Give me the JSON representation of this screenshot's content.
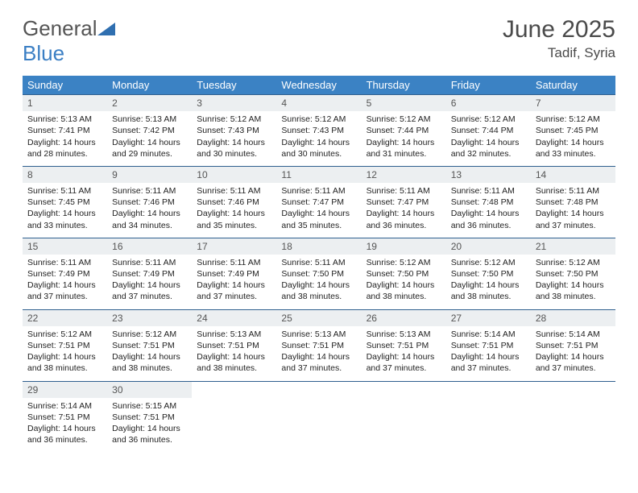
{
  "brand": {
    "name1": "General",
    "name2": "Blue"
  },
  "header": {
    "title": "June 2025",
    "location": "Tadif, Syria"
  },
  "colors": {
    "header_bg": "#3b82c4",
    "header_fg": "#ffffff",
    "daynum_bg": "#eceff1",
    "row_border": "#2f5f8f",
    "text": "#222222",
    "brand_gray": "#555555",
    "brand_blue": "#3b7fc4"
  },
  "day_headers": [
    "Sunday",
    "Monday",
    "Tuesday",
    "Wednesday",
    "Thursday",
    "Friday",
    "Saturday"
  ],
  "weeks": [
    [
      {
        "num": "1",
        "sunrise": "Sunrise: 5:13 AM",
        "sunset": "Sunset: 7:41 PM",
        "daylight": "Daylight: 14 hours and 28 minutes."
      },
      {
        "num": "2",
        "sunrise": "Sunrise: 5:13 AM",
        "sunset": "Sunset: 7:42 PM",
        "daylight": "Daylight: 14 hours and 29 minutes."
      },
      {
        "num": "3",
        "sunrise": "Sunrise: 5:12 AM",
        "sunset": "Sunset: 7:43 PM",
        "daylight": "Daylight: 14 hours and 30 minutes."
      },
      {
        "num": "4",
        "sunrise": "Sunrise: 5:12 AM",
        "sunset": "Sunset: 7:43 PM",
        "daylight": "Daylight: 14 hours and 30 minutes."
      },
      {
        "num": "5",
        "sunrise": "Sunrise: 5:12 AM",
        "sunset": "Sunset: 7:44 PM",
        "daylight": "Daylight: 14 hours and 31 minutes."
      },
      {
        "num": "6",
        "sunrise": "Sunrise: 5:12 AM",
        "sunset": "Sunset: 7:44 PM",
        "daylight": "Daylight: 14 hours and 32 minutes."
      },
      {
        "num": "7",
        "sunrise": "Sunrise: 5:12 AM",
        "sunset": "Sunset: 7:45 PM",
        "daylight": "Daylight: 14 hours and 33 minutes."
      }
    ],
    [
      {
        "num": "8",
        "sunrise": "Sunrise: 5:11 AM",
        "sunset": "Sunset: 7:45 PM",
        "daylight": "Daylight: 14 hours and 33 minutes."
      },
      {
        "num": "9",
        "sunrise": "Sunrise: 5:11 AM",
        "sunset": "Sunset: 7:46 PM",
        "daylight": "Daylight: 14 hours and 34 minutes."
      },
      {
        "num": "10",
        "sunrise": "Sunrise: 5:11 AM",
        "sunset": "Sunset: 7:46 PM",
        "daylight": "Daylight: 14 hours and 35 minutes."
      },
      {
        "num": "11",
        "sunrise": "Sunrise: 5:11 AM",
        "sunset": "Sunset: 7:47 PM",
        "daylight": "Daylight: 14 hours and 35 minutes."
      },
      {
        "num": "12",
        "sunrise": "Sunrise: 5:11 AM",
        "sunset": "Sunset: 7:47 PM",
        "daylight": "Daylight: 14 hours and 36 minutes."
      },
      {
        "num": "13",
        "sunrise": "Sunrise: 5:11 AM",
        "sunset": "Sunset: 7:48 PM",
        "daylight": "Daylight: 14 hours and 36 minutes."
      },
      {
        "num": "14",
        "sunrise": "Sunrise: 5:11 AM",
        "sunset": "Sunset: 7:48 PM",
        "daylight": "Daylight: 14 hours and 37 minutes."
      }
    ],
    [
      {
        "num": "15",
        "sunrise": "Sunrise: 5:11 AM",
        "sunset": "Sunset: 7:49 PM",
        "daylight": "Daylight: 14 hours and 37 minutes."
      },
      {
        "num": "16",
        "sunrise": "Sunrise: 5:11 AM",
        "sunset": "Sunset: 7:49 PM",
        "daylight": "Daylight: 14 hours and 37 minutes."
      },
      {
        "num": "17",
        "sunrise": "Sunrise: 5:11 AM",
        "sunset": "Sunset: 7:49 PM",
        "daylight": "Daylight: 14 hours and 37 minutes."
      },
      {
        "num": "18",
        "sunrise": "Sunrise: 5:11 AM",
        "sunset": "Sunset: 7:50 PM",
        "daylight": "Daylight: 14 hours and 38 minutes."
      },
      {
        "num": "19",
        "sunrise": "Sunrise: 5:12 AM",
        "sunset": "Sunset: 7:50 PM",
        "daylight": "Daylight: 14 hours and 38 minutes."
      },
      {
        "num": "20",
        "sunrise": "Sunrise: 5:12 AM",
        "sunset": "Sunset: 7:50 PM",
        "daylight": "Daylight: 14 hours and 38 minutes."
      },
      {
        "num": "21",
        "sunrise": "Sunrise: 5:12 AM",
        "sunset": "Sunset: 7:50 PM",
        "daylight": "Daylight: 14 hours and 38 minutes."
      }
    ],
    [
      {
        "num": "22",
        "sunrise": "Sunrise: 5:12 AM",
        "sunset": "Sunset: 7:51 PM",
        "daylight": "Daylight: 14 hours and 38 minutes."
      },
      {
        "num": "23",
        "sunrise": "Sunrise: 5:12 AM",
        "sunset": "Sunset: 7:51 PM",
        "daylight": "Daylight: 14 hours and 38 minutes."
      },
      {
        "num": "24",
        "sunrise": "Sunrise: 5:13 AM",
        "sunset": "Sunset: 7:51 PM",
        "daylight": "Daylight: 14 hours and 38 minutes."
      },
      {
        "num": "25",
        "sunrise": "Sunrise: 5:13 AM",
        "sunset": "Sunset: 7:51 PM",
        "daylight": "Daylight: 14 hours and 37 minutes."
      },
      {
        "num": "26",
        "sunrise": "Sunrise: 5:13 AM",
        "sunset": "Sunset: 7:51 PM",
        "daylight": "Daylight: 14 hours and 37 minutes."
      },
      {
        "num": "27",
        "sunrise": "Sunrise: 5:14 AM",
        "sunset": "Sunset: 7:51 PM",
        "daylight": "Daylight: 14 hours and 37 minutes."
      },
      {
        "num": "28",
        "sunrise": "Sunrise: 5:14 AM",
        "sunset": "Sunset: 7:51 PM",
        "daylight": "Daylight: 14 hours and 37 minutes."
      }
    ],
    [
      {
        "num": "29",
        "sunrise": "Sunrise: 5:14 AM",
        "sunset": "Sunset: 7:51 PM",
        "daylight": "Daylight: 14 hours and 36 minutes."
      },
      {
        "num": "30",
        "sunrise": "Sunrise: 5:15 AM",
        "sunset": "Sunset: 7:51 PM",
        "daylight": "Daylight: 14 hours and 36 minutes."
      },
      null,
      null,
      null,
      null,
      null
    ]
  ]
}
